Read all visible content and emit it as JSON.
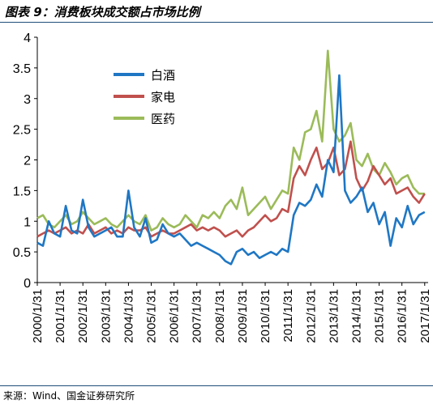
{
  "title": "图表 9：消费板块成交额占市场比例",
  "source": "来源：Wind、国金证券研究所",
  "chart_data": {
    "type": "line",
    "title": "图表 9：消费板块成交额占市场比例",
    "xlabel": "",
    "ylabel": "",
    "ylim": [
      0,
      4
    ],
    "yticks": [
      "0",
      "0.5",
      "1",
      "1.5",
      "2",
      "2.5",
      "3",
      "3.5",
      "4"
    ],
    "xticks": [
      "2000/1/31",
      "2001/1/31",
      "2002/1/31",
      "2003/1/31",
      "2004/1/31",
      "2005/1/31",
      "2006/1/31",
      "2007/1/31",
      "2008/1/31",
      "2009/1/31",
      "2010/1/31",
      "2011/1/31",
      "2012/1/31",
      "2013/1/31",
      "2014/1/31",
      "2015/1/31",
      "2016/1/31",
      "2017/1/31"
    ],
    "x_unit": "year",
    "grid": false,
    "legend_position": "upper-left",
    "colors": {
      "baijiu": "#1f77c4",
      "jiadian": "#c0504d",
      "yiyao": "#9bbb59"
    },
    "series": [
      {
        "name": "白酒",
        "key": "baijiu",
        "x": [
          2000.0,
          2000.25,
          2000.5,
          2000.75,
          2001.0,
          2001.25,
          2001.5,
          2001.75,
          2002.0,
          2002.25,
          2002.5,
          2002.75,
          2003.0,
          2003.25,
          2003.5,
          2003.75,
          2004.0,
          2004.25,
          2004.5,
          2004.75,
          2005.0,
          2005.25,
          2005.5,
          2005.75,
          2006.0,
          2006.25,
          2006.5,
          2006.75,
          2007.0,
          2007.25,
          2007.5,
          2007.75,
          2008.0,
          2008.25,
          2008.5,
          2008.75,
          2009.0,
          2009.25,
          2009.5,
          2009.75,
          2010.0,
          2010.25,
          2010.5,
          2010.75,
          2011.0,
          2011.25,
          2011.5,
          2011.75,
          2012.0,
          2012.25,
          2012.5,
          2012.75,
          2013.0,
          2013.25,
          2013.5,
          2013.75,
          2014.0,
          2014.25,
          2014.5,
          2014.75,
          2015.0,
          2015.25,
          2015.5,
          2015.75,
          2016.0,
          2016.25,
          2016.5,
          2016.75,
          2017.0
        ],
        "y": [
          0.65,
          0.6,
          1.0,
          0.8,
          0.75,
          1.25,
          0.85,
          0.8,
          1.35,
          0.9,
          0.75,
          0.8,
          0.85,
          0.9,
          0.75,
          0.75,
          1.5,
          0.9,
          0.75,
          1.05,
          0.65,
          0.7,
          0.95,
          0.8,
          0.75,
          0.8,
          0.7,
          0.6,
          0.65,
          0.6,
          0.55,
          0.5,
          0.45,
          0.35,
          0.3,
          0.5,
          0.55,
          0.45,
          0.5,
          0.4,
          0.45,
          0.5,
          0.45,
          0.55,
          0.5,
          1.1,
          1.3,
          1.25,
          1.35,
          1.6,
          1.4,
          2.0,
          1.8,
          3.38,
          1.5,
          1.3,
          1.4,
          1.55,
          1.15,
          1.3,
          0.95,
          1.15,
          0.6,
          1.05,
          0.9,
          1.25,
          0.95,
          1.1,
          1.15
        ]
      },
      {
        "name": "家电",
        "key": "jiadian",
        "x": [
          2000.0,
          2000.25,
          2000.5,
          2000.75,
          2001.0,
          2001.25,
          2001.5,
          2001.75,
          2002.0,
          2002.25,
          2002.5,
          2002.75,
          2003.0,
          2003.25,
          2003.5,
          2003.75,
          2004.0,
          2004.25,
          2004.5,
          2004.75,
          2005.0,
          2005.25,
          2005.5,
          2005.75,
          2006.0,
          2006.25,
          2006.5,
          2006.75,
          2007.0,
          2007.25,
          2007.5,
          2007.75,
          2008.0,
          2008.25,
          2008.5,
          2008.75,
          2009.0,
          2009.25,
          2009.5,
          2009.75,
          2010.0,
          2010.25,
          2010.5,
          2010.75,
          2011.0,
          2011.25,
          2011.5,
          2011.75,
          2012.0,
          2012.25,
          2012.5,
          2012.75,
          2013.0,
          2013.25,
          2013.5,
          2013.75,
          2014.0,
          2014.25,
          2014.5,
          2014.75,
          2015.0,
          2015.25,
          2015.5,
          2015.75,
          2016.0,
          2016.25,
          2016.5,
          2016.75,
          2017.0
        ],
        "y": [
          0.75,
          0.8,
          0.85,
          0.8,
          0.85,
          0.9,
          0.8,
          0.85,
          0.8,
          0.95,
          0.8,
          0.85,
          0.9,
          0.8,
          0.85,
          0.8,
          0.9,
          0.85,
          0.85,
          0.9,
          0.75,
          0.8,
          0.85,
          0.8,
          0.8,
          0.85,
          0.9,
          0.95,
          0.85,
          0.9,
          0.85,
          0.9,
          0.85,
          0.75,
          0.8,
          0.85,
          0.75,
          0.85,
          0.9,
          1.0,
          1.1,
          1.0,
          1.05,
          1.2,
          1.15,
          1.7,
          1.9,
          1.75,
          2.0,
          2.2,
          1.85,
          1.95,
          2.2,
          1.75,
          1.85,
          2.3,
          1.7,
          1.5,
          1.65,
          1.9,
          1.75,
          1.6,
          1.7,
          1.45,
          1.5,
          1.55,
          1.4,
          1.3,
          1.45
        ]
      },
      {
        "name": "医药",
        "key": "yiyao",
        "x": [
          2000.0,
          2000.25,
          2000.5,
          2000.75,
          2001.0,
          2001.25,
          2001.5,
          2001.75,
          2002.0,
          2002.25,
          2002.5,
          2002.75,
          2003.0,
          2003.25,
          2003.5,
          2003.75,
          2004.0,
          2004.25,
          2004.5,
          2004.75,
          2005.0,
          2005.25,
          2005.5,
          2005.75,
          2006.0,
          2006.25,
          2006.5,
          2006.75,
          2007.0,
          2007.25,
          2007.5,
          2007.75,
          2008.0,
          2008.25,
          2008.5,
          2008.75,
          2009.0,
          2009.25,
          2009.5,
          2009.75,
          2010.0,
          2010.25,
          2010.5,
          2010.75,
          2011.0,
          2011.25,
          2011.5,
          2011.75,
          2012.0,
          2012.25,
          2012.5,
          2012.75,
          2013.0,
          2013.25,
          2013.5,
          2013.75,
          2014.0,
          2014.25,
          2014.5,
          2014.75,
          2015.0,
          2015.25,
          2015.5,
          2015.75,
          2016.0,
          2016.25,
          2016.5,
          2016.75,
          2017.0
        ],
        "y": [
          1.05,
          1.1,
          0.95,
          0.9,
          1.0,
          1.1,
          0.95,
          1.0,
          1.15,
          1.05,
          0.95,
          1.0,
          1.05,
          0.95,
          0.9,
          1.0,
          1.1,
          1.0,
          0.95,
          1.1,
          0.85,
          0.9,
          1.05,
          0.95,
          0.9,
          0.95,
          1.1,
          1.0,
          0.9,
          1.1,
          1.05,
          1.15,
          1.05,
          1.25,
          1.35,
          1.2,
          1.55,
          1.1,
          1.2,
          1.3,
          1.4,
          1.2,
          1.35,
          1.5,
          1.45,
          2.2,
          2.0,
          2.45,
          2.5,
          2.8,
          2.3,
          3.78,
          2.5,
          2.3,
          2.4,
          2.6,
          2.0,
          1.9,
          2.1,
          1.85,
          1.75,
          1.95,
          1.8,
          1.6,
          1.7,
          1.75,
          1.55,
          1.45,
          1.45
        ]
      }
    ]
  }
}
